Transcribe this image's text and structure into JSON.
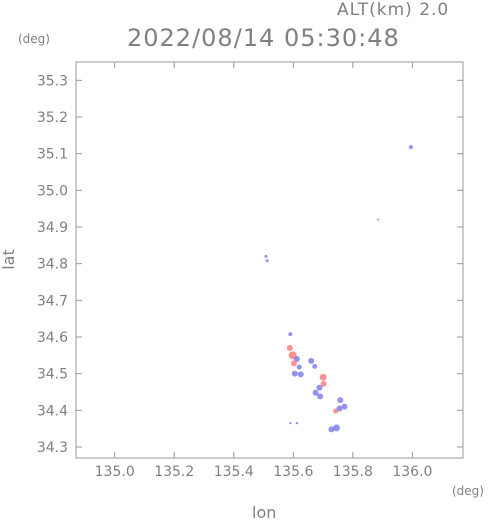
{
  "header": {
    "altitude_label": "ALT(km) 2.0",
    "timestamp": "2022/08/14 05:30:48"
  },
  "chart_data": {
    "type": "scatter",
    "title": "2022/08/14 05:30:48",
    "xlabel": "lon",
    "ylabel": "lat",
    "x_unit": "(deg)",
    "y_unit": "(deg)",
    "xlim": [
      134.87,
      136.17
    ],
    "ylim": [
      34.27,
      35.35
    ],
    "x_ticks": [
      135.0,
      135.2,
      135.4,
      135.6,
      135.8,
      136.0
    ],
    "x_tick_labels": [
      "135.0",
      "135.2",
      "135.4",
      "135.6",
      "135.8",
      "136.0"
    ],
    "y_ticks": [
      34.3,
      34.4,
      34.5,
      34.6,
      34.7,
      34.8,
      34.9,
      35.0,
      35.1,
      35.2,
      35.3
    ],
    "y_tick_labels": [
      "34.3",
      "34.4",
      "34.5",
      "34.6",
      "34.7",
      "34.8",
      "34.9",
      "35.0",
      "35.1",
      "35.2",
      "35.3"
    ],
    "grid": false,
    "colors": {
      "positive": "#ff7777",
      "negative": "#7777ee",
      "frame": "#999999"
    },
    "points": [
      {
        "x": 135.995,
        "y": 35.118,
        "v": -1,
        "s": 2
      },
      {
        "x": 135.885,
        "y": 34.92,
        "v": -1,
        "s": 1
      },
      {
        "x": 135.508,
        "y": 34.82,
        "v": -1,
        "s": 1.5
      },
      {
        "x": 135.512,
        "y": 34.808,
        "v": -1,
        "s": 1.5
      },
      {
        "x": 135.59,
        "y": 34.608,
        "v": -1,
        "s": 2
      },
      {
        "x": 135.588,
        "y": 34.57,
        "v": 1,
        "s": 3
      },
      {
        "x": 135.598,
        "y": 34.55,
        "v": 1,
        "s": 4
      },
      {
        "x": 135.612,
        "y": 34.54,
        "v": -1,
        "s": 3
      },
      {
        "x": 135.602,
        "y": 34.528,
        "v": 1,
        "s": 3
      },
      {
        "x": 135.62,
        "y": 34.518,
        "v": -1,
        "s": 2.5
      },
      {
        "x": 135.605,
        "y": 34.5,
        "v": -1,
        "s": 3
      },
      {
        "x": 135.625,
        "y": 34.498,
        "v": -1,
        "s": 3
      },
      {
        "x": 135.66,
        "y": 34.535,
        "v": -1,
        "s": 3
      },
      {
        "x": 135.672,
        "y": 34.52,
        "v": -1,
        "s": 2.5
      },
      {
        "x": 135.7,
        "y": 34.49,
        "v": 1,
        "s": 3.5
      },
      {
        "x": 135.702,
        "y": 34.472,
        "v": 1,
        "s": 3
      },
      {
        "x": 135.688,
        "y": 34.462,
        "v": -1,
        "s": 3
      },
      {
        "x": 135.675,
        "y": 34.448,
        "v": -1,
        "s": 3
      },
      {
        "x": 135.69,
        "y": 34.438,
        "v": -1,
        "s": 3
      },
      {
        "x": 135.758,
        "y": 34.428,
        "v": -1,
        "s": 3
      },
      {
        "x": 135.772,
        "y": 34.41,
        "v": -1,
        "s": 3
      },
      {
        "x": 135.742,
        "y": 34.398,
        "v": 1,
        "s": 2.5
      },
      {
        "x": 135.755,
        "y": 34.405,
        "v": -1,
        "s": 3
      },
      {
        "x": 135.745,
        "y": 34.352,
        "v": -1,
        "s": 3.5
      },
      {
        "x": 135.728,
        "y": 34.348,
        "v": -1,
        "s": 3
      },
      {
        "x": 135.59,
        "y": 34.365,
        "v": -1,
        "s": 1.2
      },
      {
        "x": 135.612,
        "y": 34.365,
        "v": -1,
        "s": 1.2
      }
    ]
  }
}
